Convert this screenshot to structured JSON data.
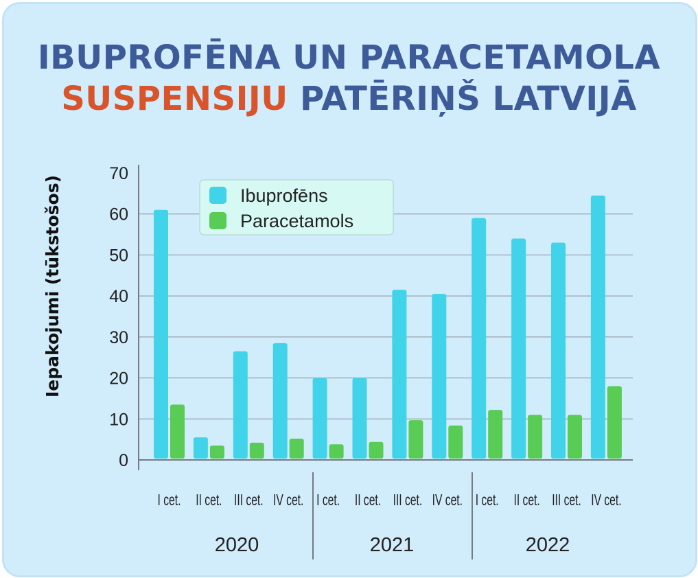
{
  "title": {
    "line1": "IBUPROFĒNA UN PARACETAMOLA",
    "line2_accent": "SUSPENSIJU",
    "line2_rest": " PATĒRIŅŠ LATVIJĀ"
  },
  "colors": {
    "background": "#d1ecfb",
    "title": "#3d5a99",
    "accent": "#d9532b",
    "ibuprofens": "#41d3ea",
    "paracetamols": "#58cc55"
  },
  "chart_data": {
    "type": "bar",
    "title": "IBUPROFĒNA UN PARACETAMOLA SUSPENSIJU PATĒRIŅŠ LATVIJĀ",
    "ylabel": "Iepakojumi (tūkstošos)",
    "xlabel": "",
    "ylim": [
      0,
      70
    ],
    "yticks": [
      0,
      10,
      20,
      30,
      40,
      50,
      60,
      70
    ],
    "grid": true,
    "legend_position": "top-left",
    "groups": [
      {
        "label": "2020",
        "categories": [
          "I cet.",
          "II cet.",
          "III cet.",
          "IV cet."
        ]
      },
      {
        "label": "2021",
        "categories": [
          "I cet.",
          "II cet.",
          "III cet.",
          "IV cet."
        ]
      },
      {
        "label": "2022",
        "categories": [
          "I cet.",
          "II cet.",
          "III cet.",
          "IV cet."
        ]
      }
    ],
    "categories": [
      "I cet.",
      "II cet.",
      "III cet.",
      "IV cet.",
      "I cet.",
      "II cet.",
      "III cet.",
      "IV cet.",
      "I cet.",
      "II cet.",
      "III cet.",
      "IV cet."
    ],
    "series": [
      {
        "name": "Ibuprofēns",
        "color": "#41d3ea",
        "values": [
          61,
          5.5,
          26.5,
          28.5,
          20,
          20,
          41.5,
          40.5,
          59,
          54,
          53,
          64.5
        ]
      },
      {
        "name": "Paracetamols",
        "color": "#58cc55",
        "values": [
          13.5,
          3.5,
          4.2,
          5.2,
          3.8,
          4.4,
          9.7,
          8.4,
          12.2,
          11,
          11,
          18
        ]
      }
    ]
  }
}
